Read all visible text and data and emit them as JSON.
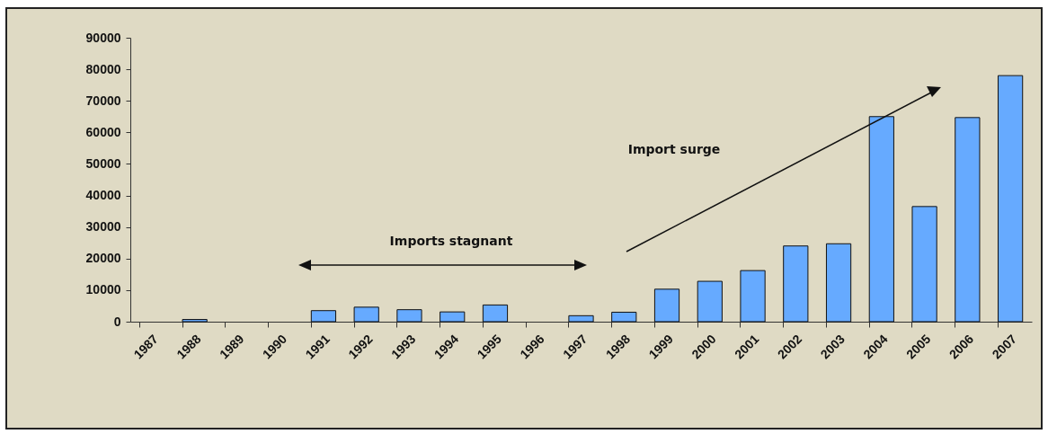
{
  "chart_data": {
    "type": "bar",
    "categories": [
      "1987",
      "1988",
      "1989",
      "1990",
      "1991",
      "1992",
      "1993",
      "1994",
      "1995",
      "1996",
      "1997",
      "1998",
      "1999",
      "2000",
      "2001",
      "2002",
      "2003",
      "2004",
      "2005",
      "2006",
      "2007"
    ],
    "values": [
      0,
      700,
      0,
      0,
      3500,
      4600,
      3800,
      3100,
      5300,
      0,
      1900,
      3000,
      10300,
      12800,
      16200,
      24000,
      24700,
      65000,
      36500,
      64700,
      78000
    ],
    "color": "#66aaff",
    "ylim": [
      0,
      90000
    ],
    "yticks": [
      0,
      10000,
      20000,
      30000,
      40000,
      50000,
      60000,
      70000,
      80000,
      90000
    ],
    "grid": false,
    "annotations": [
      "Imports stagnant",
      "Import surge"
    ]
  }
}
